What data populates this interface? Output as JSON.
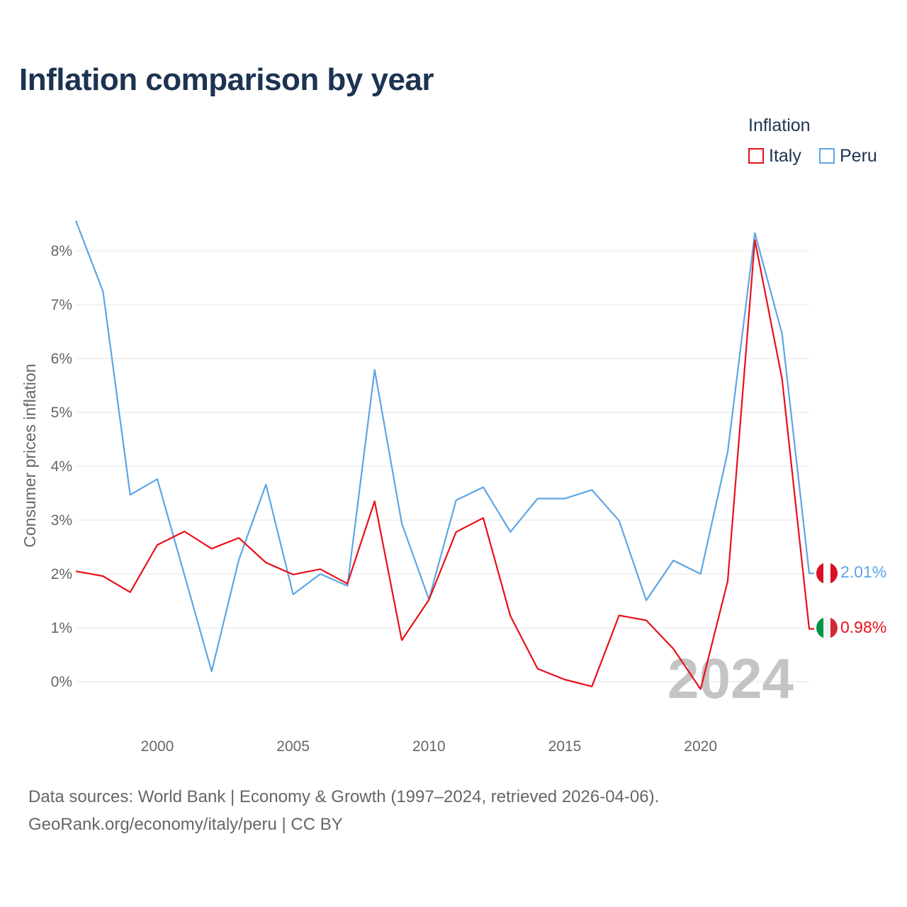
{
  "title": "Inflation comparison by year",
  "legend": {
    "title": "Inflation",
    "items": [
      {
        "label": "Italy",
        "color": "#e8101a"
      },
      {
        "label": "Peru",
        "color": "#5ea5e4"
      }
    ]
  },
  "chart_data": {
    "type": "line",
    "title": "Inflation comparison by year",
    "xlabel": "",
    "ylabel": "Consumer prices inflation",
    "x": [
      1997,
      1998,
      1999,
      2000,
      2001,
      2002,
      2003,
      2004,
      2005,
      2006,
      2007,
      2008,
      2009,
      2010,
      2011,
      2012,
      2013,
      2014,
      2015,
      2016,
      2017,
      2018,
      2019,
      2020,
      2021,
      2022,
      2023,
      2024
    ],
    "xlim": [
      1997,
      2024
    ],
    "ylim": [
      -0.8,
      8.6
    ],
    "x_ticks": [
      2000,
      2005,
      2010,
      2015,
      2020
    ],
    "y_ticks": [
      0,
      1,
      2,
      3,
      4,
      5,
      6,
      7,
      8
    ],
    "y_tick_labels": [
      "0%",
      "1%",
      "2%",
      "3%",
      "4%",
      "5%",
      "6%",
      "7%",
      "8%"
    ],
    "grid": true,
    "legend_position": "top-right",
    "highlight_year": "2024",
    "series": [
      {
        "name": "Italy",
        "color": "#e8101a",
        "values": [
          2.05,
          1.96,
          1.66,
          2.54,
          2.79,
          2.47,
          2.67,
          2.21,
          1.99,
          2.09,
          1.82,
          3.35,
          0.77,
          1.52,
          2.78,
          3.04,
          1.22,
          0.24,
          0.04,
          -0.09,
          1.23,
          1.14,
          0.61,
          -0.14,
          1.87,
          8.2,
          5.62,
          0.98
        ],
        "end_label": "0.98%"
      },
      {
        "name": "Peru",
        "color": "#5ea5e4",
        "values": [
          8.56,
          7.25,
          3.47,
          3.76,
          1.98,
          0.19,
          2.26,
          3.66,
          1.62,
          2.0,
          1.78,
          5.79,
          2.94,
          1.53,
          3.37,
          3.61,
          2.78,
          3.4,
          3.4,
          3.56,
          2.99,
          1.51,
          2.25,
          2.0,
          4.27,
          8.33,
          6.46,
          2.01
        ],
        "end_label": "2.01%"
      }
    ]
  },
  "source": {
    "line1": "Data sources: World Bank | Economy & Growth (1997–2024, retrieved 2026-04-06).",
    "line2": "GeoRank.org/economy/italy/peru | CC BY"
  }
}
